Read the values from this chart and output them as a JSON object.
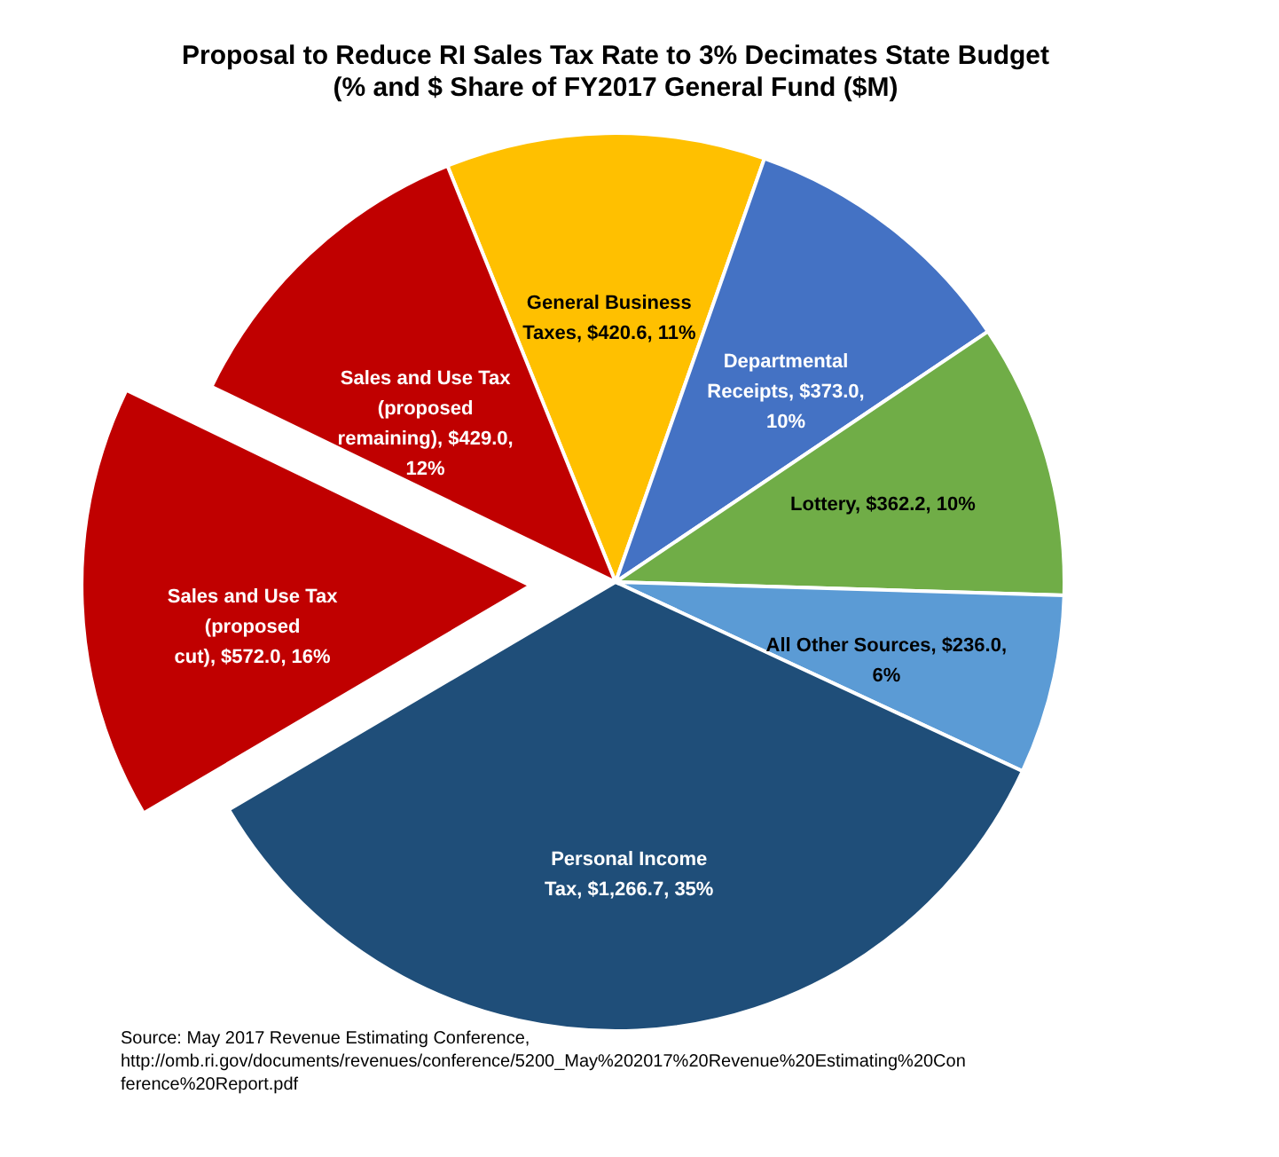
{
  "chart_data": {
    "type": "pie",
    "title": "Proposal to Reduce RI Sales Tax Rate to 3% Decimates State Budget",
    "subtitle": "(% and $ Share of FY2017 General Fund ($M)",
    "categories": [
      "General Business Taxes",
      "Departmental Receipts",
      "Lottery",
      "All Other Sources",
      "Personal Income Tax",
      "Sales and Use Tax (proposed cut)",
      "Sales and Use Tax (proposed remaining)"
    ],
    "values": [
      420.6,
      373.0,
      362.2,
      236.0,
      1266.7,
      572.0,
      429.0
    ],
    "colors": [
      "#ffc000",
      "#4472c4",
      "#70ad47",
      "#5b9bd5",
      "#1f4e79",
      "#c00000",
      "#c00000"
    ],
    "value_labels": [
      "$420.6, 11%",
      "$373.0, 10%",
      "$362.2, 10%",
      "$236.0, 6%",
      "$1,266.7, 35%",
      "$572.0, 16%",
      "$429.0, 12%"
    ],
    "annotations": [
      "Source: May 2017 Revenue Estimating Conference, http://omb.ri.gov/documents/revenues/conference/5200_May%202017%20Revenue%20Estimating%20Conference%20Report.pdf"
    ]
  }
}
